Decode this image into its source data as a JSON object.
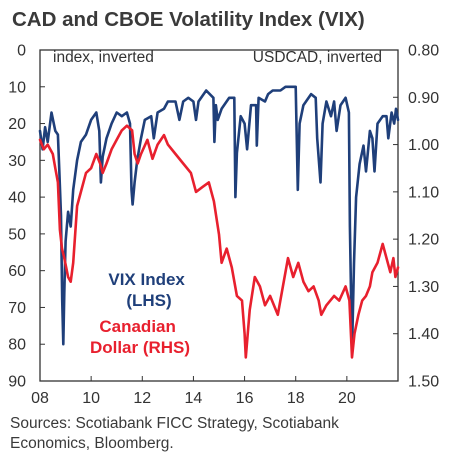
{
  "chart_data": {
    "type": "line",
    "title": "CAD and CBOE Volatility Index (VIX)",
    "left_axis_label": "index, inverted",
    "right_axis_label": "USDCAD, inverted",
    "left_axis": {
      "min": 0,
      "max": 90,
      "inverted": true,
      "ticks": [
        "0",
        "10",
        "20",
        "30",
        "40",
        "50",
        "60",
        "70",
        "80",
        "90"
      ]
    },
    "right_axis": {
      "min": 0.8,
      "max": 1.5,
      "inverted": true,
      "ticks": [
        "0.80",
        "0.90",
        "1.00",
        "1.10",
        "1.20",
        "1.30",
        "1.40",
        "1.50"
      ]
    },
    "x_axis": {
      "min": 2008,
      "max": 2022,
      "ticks": [
        "08",
        "10",
        "12",
        "14",
        "16",
        "18",
        "20"
      ]
    },
    "series": [
      {
        "name": "VIX Index (LHS)",
        "label_lines": [
          "VIX Index",
          "(LHS)"
        ],
        "axis": "left",
        "color": "#1f3f7a",
        "points": [
          [
            2008.0,
            22
          ],
          [
            2008.1,
            27
          ],
          [
            2008.2,
            21
          ],
          [
            2008.3,
            25
          ],
          [
            2008.45,
            17
          ],
          [
            2008.6,
            22
          ],
          [
            2008.7,
            23
          ],
          [
            2008.75,
            32
          ],
          [
            2008.82,
            45
          ],
          [
            2008.87,
            68
          ],
          [
            2008.91,
            80
          ],
          [
            2008.95,
            66
          ],
          [
            2009.0,
            52
          ],
          [
            2009.1,
            44
          ],
          [
            2009.2,
            48
          ],
          [
            2009.3,
            38
          ],
          [
            2009.45,
            30
          ],
          [
            2009.6,
            25
          ],
          [
            2009.8,
            23
          ],
          [
            2010.0,
            19
          ],
          [
            2010.2,
            17
          ],
          [
            2010.32,
            22
          ],
          [
            2010.38,
            36
          ],
          [
            2010.45,
            29
          ],
          [
            2010.6,
            24
          ],
          [
            2010.8,
            20
          ],
          [
            2011.0,
            17
          ],
          [
            2011.2,
            18
          ],
          [
            2011.4,
            17
          ],
          [
            2011.52,
            20
          ],
          [
            2011.58,
            38
          ],
          [
            2011.62,
            42
          ],
          [
            2011.7,
            36
          ],
          [
            2011.8,
            30
          ],
          [
            2011.95,
            24
          ],
          [
            2012.1,
            19
          ],
          [
            2012.35,
            18
          ],
          [
            2012.45,
            24
          ],
          [
            2012.6,
            17
          ],
          [
            2012.85,
            16
          ],
          [
            2013.0,
            14
          ],
          [
            2013.3,
            14
          ],
          [
            2013.45,
            19
          ],
          [
            2013.6,
            14
          ],
          [
            2013.8,
            13
          ],
          [
            2014.0,
            14
          ],
          [
            2014.1,
            19
          ],
          [
            2014.2,
            14
          ],
          [
            2014.5,
            11
          ],
          [
            2014.78,
            13
          ],
          [
            2014.82,
            25
          ],
          [
            2014.88,
            15
          ],
          [
            2014.95,
            19
          ],
          [
            2015.1,
            16
          ],
          [
            2015.4,
            13
          ],
          [
            2015.6,
            13
          ],
          [
            2015.64,
            40
          ],
          [
            2015.7,
            28
          ],
          [
            2015.85,
            18
          ],
          [
            2016.0,
            20
          ],
          [
            2016.1,
            27
          ],
          [
            2016.25,
            15
          ],
          [
            2016.45,
            15
          ],
          [
            2016.48,
            26
          ],
          [
            2016.55,
            13
          ],
          [
            2016.8,
            14
          ],
          [
            2016.92,
            12
          ],
          [
            2017.1,
            11
          ],
          [
            2017.4,
            11
          ],
          [
            2017.6,
            10
          ],
          [
            2017.8,
            10
          ],
          [
            2018.0,
            10
          ],
          [
            2018.08,
            38
          ],
          [
            2018.15,
            20
          ],
          [
            2018.3,
            15
          ],
          [
            2018.6,
            12
          ],
          [
            2018.78,
            13
          ],
          [
            2018.84,
            24
          ],
          [
            2018.97,
            36
          ],
          [
            2019.05,
            20
          ],
          [
            2019.2,
            14
          ],
          [
            2019.38,
            18
          ],
          [
            2019.5,
            14
          ],
          [
            2019.6,
            22
          ],
          [
            2019.75,
            15
          ],
          [
            2019.95,
            13
          ],
          [
            2020.08,
            17
          ],
          [
            2020.12,
            48
          ],
          [
            2020.2,
            82
          ],
          [
            2020.28,
            58
          ],
          [
            2020.36,
            40
          ],
          [
            2020.5,
            31
          ],
          [
            2020.65,
            26
          ],
          [
            2020.75,
            33
          ],
          [
            2020.82,
            28
          ],
          [
            2020.9,
            22
          ],
          [
            2021.0,
            24
          ],
          [
            2021.08,
            33
          ],
          [
            2021.2,
            20
          ],
          [
            2021.4,
            18
          ],
          [
            2021.55,
            18
          ],
          [
            2021.62,
            24
          ],
          [
            2021.75,
            17
          ],
          [
            2021.85,
            20
          ],
          [
            2021.92,
            16
          ],
          [
            2022.0,
            19
          ]
        ]
      },
      {
        "name": "Canadian Dollar (RHS)",
        "label_lines": [
          "Canadian",
          "Dollar (RHS)"
        ],
        "axis": "right",
        "color": "#e8202e",
        "points": [
          [
            2008.0,
            0.99
          ],
          [
            2008.15,
            1.01
          ],
          [
            2008.3,
            1.0
          ],
          [
            2008.5,
            1.02
          ],
          [
            2008.6,
            1.05
          ],
          [
            2008.7,
            1.08
          ],
          [
            2008.78,
            1.18
          ],
          [
            2008.86,
            1.22
          ],
          [
            2008.95,
            1.24
          ],
          [
            2009.1,
            1.28
          ],
          [
            2009.2,
            1.29
          ],
          [
            2009.3,
            1.25
          ],
          [
            2009.45,
            1.13
          ],
          [
            2009.6,
            1.1
          ],
          [
            2009.8,
            1.06
          ],
          [
            2010.0,
            1.05
          ],
          [
            2010.2,
            1.02
          ],
          [
            2010.35,
            1.04
          ],
          [
            2010.45,
            1.06
          ],
          [
            2010.6,
            1.04
          ],
          [
            2010.8,
            1.01
          ],
          [
            2011.0,
            0.99
          ],
          [
            2011.2,
            0.97
          ],
          [
            2011.4,
            0.96
          ],
          [
            2011.6,
            0.97
          ],
          [
            2011.7,
            1.02
          ],
          [
            2011.82,
            1.04
          ],
          [
            2011.95,
            1.02
          ],
          [
            2012.2,
            0.99
          ],
          [
            2012.4,
            1.03
          ],
          [
            2012.6,
            1.0
          ],
          [
            2012.85,
            0.98
          ],
          [
            2013.0,
            1.0
          ],
          [
            2013.3,
            1.02
          ],
          [
            2013.6,
            1.04
          ],
          [
            2013.9,
            1.06
          ],
          [
            2014.1,
            1.1
          ],
          [
            2014.35,
            1.09
          ],
          [
            2014.6,
            1.08
          ],
          [
            2014.8,
            1.12
          ],
          [
            2015.0,
            1.19
          ],
          [
            2015.1,
            1.25
          ],
          [
            2015.3,
            1.22
          ],
          [
            2015.5,
            1.26
          ],
          [
            2015.7,
            1.32
          ],
          [
            2015.9,
            1.33
          ],
          [
            2016.0,
            1.4
          ],
          [
            2016.05,
            1.45
          ],
          [
            2016.2,
            1.35
          ],
          [
            2016.4,
            1.28
          ],
          [
            2016.6,
            1.3
          ],
          [
            2016.8,
            1.34
          ],
          [
            2017.0,
            1.32
          ],
          [
            2017.3,
            1.36
          ],
          [
            2017.5,
            1.3
          ],
          [
            2017.7,
            1.24
          ],
          [
            2017.9,
            1.28
          ],
          [
            2018.1,
            1.25
          ],
          [
            2018.3,
            1.29
          ],
          [
            2018.5,
            1.31
          ],
          [
            2018.7,
            1.3
          ],
          [
            2018.9,
            1.33
          ],
          [
            2019.0,
            1.36
          ],
          [
            2019.2,
            1.34
          ],
          [
            2019.5,
            1.32
          ],
          [
            2019.7,
            1.33
          ],
          [
            2019.95,
            1.3
          ],
          [
            2020.1,
            1.33
          ],
          [
            2020.2,
            1.45
          ],
          [
            2020.3,
            1.4
          ],
          [
            2020.45,
            1.36
          ],
          [
            2020.6,
            1.33
          ],
          [
            2020.75,
            1.32
          ],
          [
            2020.9,
            1.3
          ],
          [
            2021.0,
            1.27
          ],
          [
            2021.2,
            1.25
          ],
          [
            2021.4,
            1.21
          ],
          [
            2021.55,
            1.24
          ],
          [
            2021.7,
            1.27
          ],
          [
            2021.82,
            1.24
          ],
          [
            2021.9,
            1.28
          ],
          [
            2022.0,
            1.26
          ]
        ]
      }
    ],
    "source_lines": [
      "Sources: Scotiabank FICC Strategy, Scotiabank",
      "Economics, Bloomberg."
    ]
  }
}
